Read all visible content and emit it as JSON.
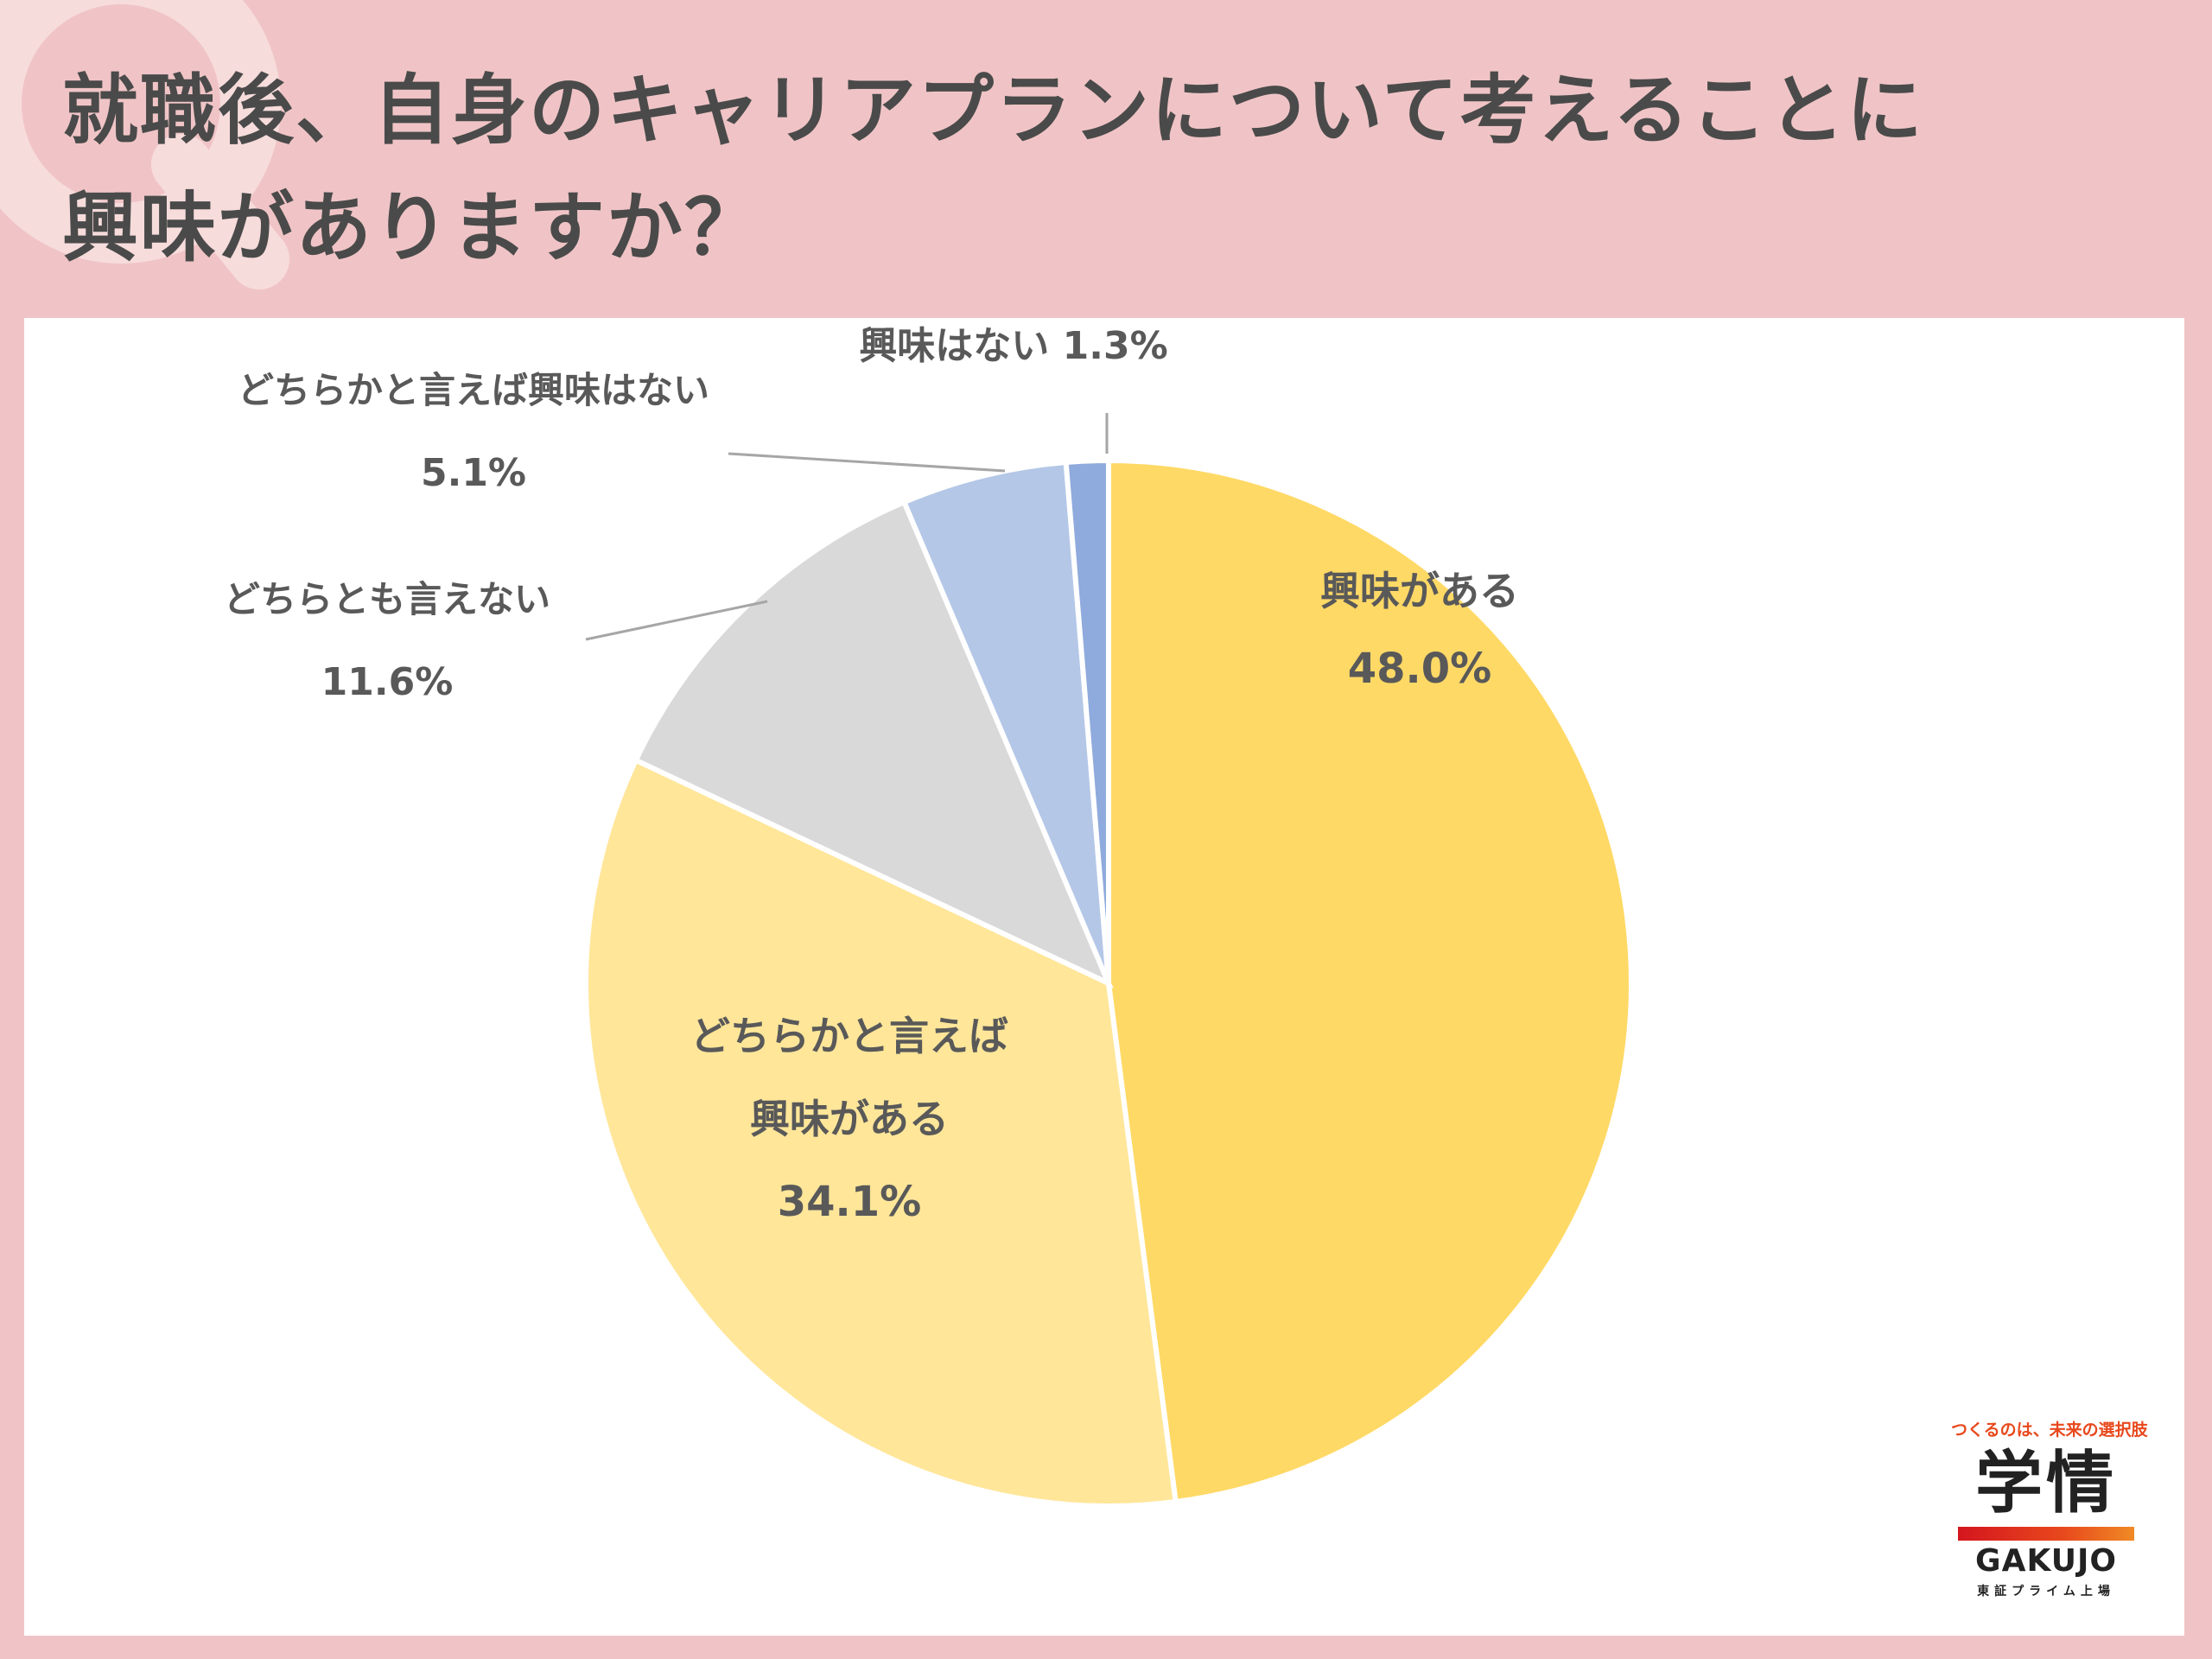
{
  "title": {
    "line1": "就職後、自身のキャリアプランについて考えることに",
    "line2": "興味がありますか？"
  },
  "watermark": "Q",
  "chart_data": {
    "type": "pie",
    "start_angle_deg": 0,
    "direction": "clockwise",
    "slices": [
      {
        "label_lines": [
          "興味がある"
        ],
        "value": 48.0,
        "value_text": "48.0%",
        "color": "#ffd966"
      },
      {
        "label_lines": [
          "どちらかと言えば",
          "興味がある"
        ],
        "value": 34.1,
        "value_text": "34.1%",
        "color": "#ffe699"
      },
      {
        "label_lines": [
          "どちらとも言えない"
        ],
        "value": 11.6,
        "value_text": "11.6%",
        "color": "#d9d9d9"
      },
      {
        "label_lines": [
          "どちらかと言えば興味はない"
        ],
        "value": 5.1,
        "value_text": "5.1%",
        "color": "#b4c7e7"
      },
      {
        "label_lines": [
          "興味はない"
        ],
        "value": 1.3,
        "value_text": "1.3%",
        "color": "#8faadc"
      }
    ]
  },
  "logo": {
    "tagline": "つくるのは、未来の選択肢",
    "kanji": "学情",
    "english": "GAKUJO",
    "subtitle": "東証プライム上場"
  }
}
